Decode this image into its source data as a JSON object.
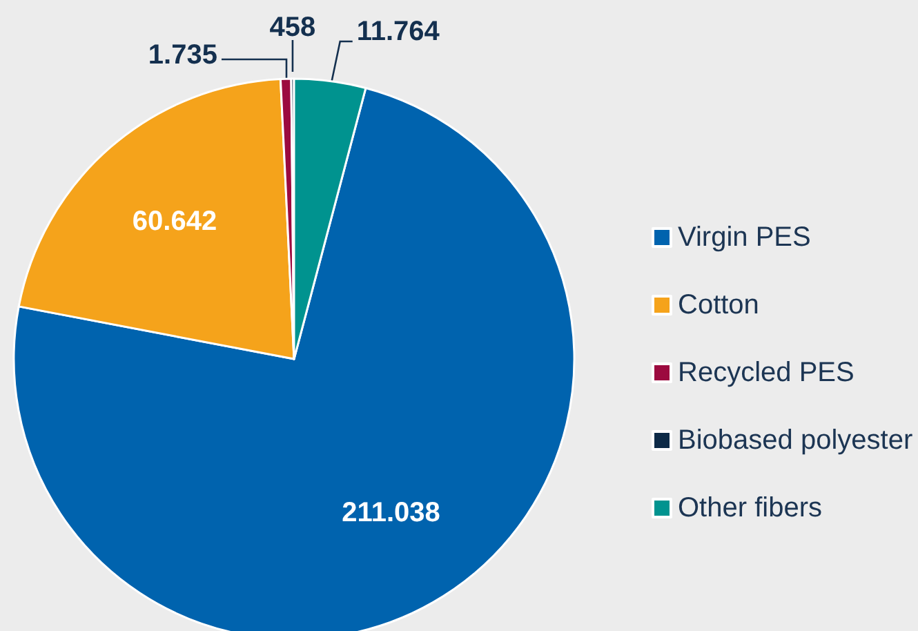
{
  "chart_data": {
    "type": "pie",
    "categories": [
      "Virgin PES",
      "Cotton",
      "Recycled PES",
      "Biobased polyester",
      "Other fibers"
    ],
    "values": [
      211038,
      60642,
      1735,
      458,
      11764
    ],
    "value_labels": [
      "211.038",
      "60.642",
      "1.735",
      "458",
      "11.764"
    ],
    "colors": [
      "#0063ae",
      "#f5a31b",
      "#9c0a3f",
      "#0d2a47",
      "#00938f"
    ],
    "legend": "right"
  }
}
